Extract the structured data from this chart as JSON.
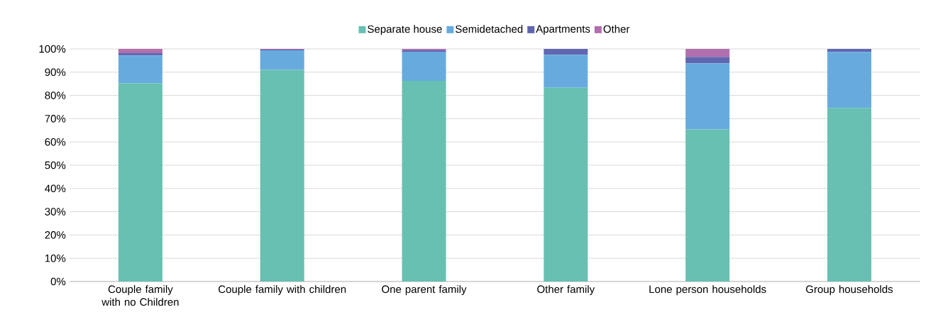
{
  "chart_data": {
    "type": "bar",
    "stacked": true,
    "categories": [
      "Couple family with no Children",
      "Couple family with children",
      "One parent family",
      "Other family",
      "Lone person households",
      "Group households"
    ],
    "series": [
      {
        "name": "Separate house",
        "color": "#67c0b2",
        "values": [
          85.2,
          91.0,
          86.3,
          83.3,
          65.4,
          74.6
        ]
      },
      {
        "name": "Semidetached",
        "color": "#67abde",
        "values": [
          12.0,
          8.4,
          12.5,
          14.2,
          28.4,
          24.1
        ]
      },
      {
        "name": "Apartments",
        "color": "#6067b0",
        "values": [
          1.0,
          0.3,
          0.6,
          2.5,
          2.8,
          1.3
        ]
      },
      {
        "name": "Other",
        "color": "#b16fae",
        "values": [
          1.8,
          0.3,
          0.6,
          0,
          3.4,
          0
        ]
      }
    ],
    "ylim": [
      0,
      100
    ],
    "yticks": [
      {
        "value": 0,
        "label": "0%"
      },
      {
        "value": 10,
        "label": "10%"
      },
      {
        "value": 20,
        "label": "20%"
      },
      {
        "value": 30,
        "label": "30%"
      },
      {
        "value": 40,
        "label": "40%"
      },
      {
        "value": 50,
        "label": "50%"
      },
      {
        "value": 60,
        "label": "60%"
      },
      {
        "value": 70,
        "label": "70%"
      },
      {
        "value": 80,
        "label": "80%"
      },
      {
        "value": 90,
        "label": "90%"
      },
      {
        "value": 100,
        "label": "100%"
      }
    ],
    "grid": "y",
    "legend": "top"
  }
}
